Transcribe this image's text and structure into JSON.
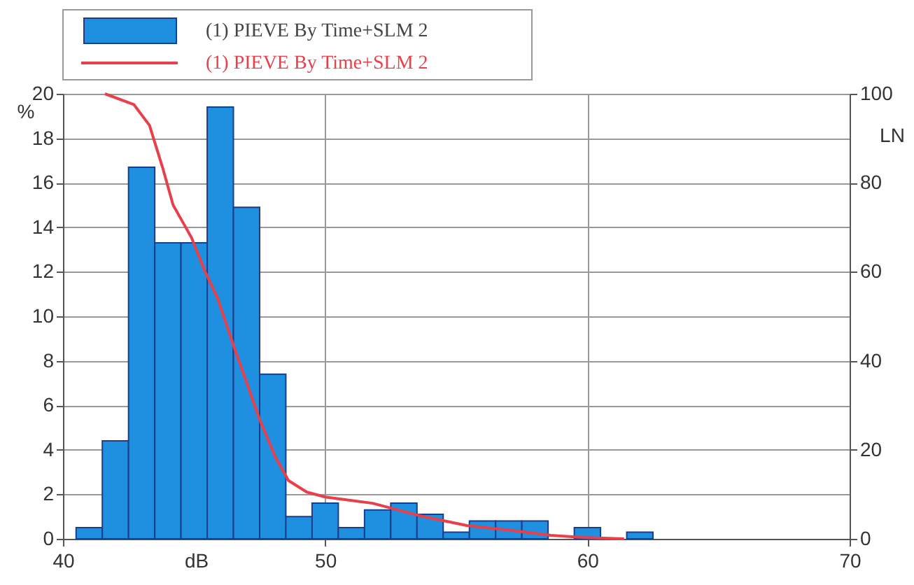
{
  "chart_data": {
    "type": "histogram",
    "xlabel": "dB",
    "ylabel": "%",
    "y2label": "LN",
    "bins": [
      40.5,
      41.5,
      42.5,
      43.5,
      44.5,
      45.5,
      46.5,
      47.5,
      48.5,
      49.5,
      50.5,
      51.5,
      52.5,
      53.5,
      54.5,
      55.5,
      56.5,
      57.5,
      58.5,
      59.5,
      60.5,
      61.5,
      62.5
    ],
    "series": [
      {
        "name": "(1) PIEVE By Time+SLM 2",
        "color": "#1f8fe0",
        "values": [
          0.5,
          4.4,
          16.7,
          13.3,
          13.3,
          19.4,
          14.9,
          7.4,
          1.0,
          1.6,
          0.5,
          1.3,
          1.6,
          1.1,
          0.3,
          0.8,
          0.8,
          0.8,
          null,
          0.5,
          null,
          0.3
        ]
      },
      {
        "name": "(1) PIEVE By Time+SLM 2",
        "type": "line",
        "axis": "y2",
        "color": "#e8404a",
        "x": [
          41.6,
          42.7,
          43.3,
          43.8,
          44.2,
          44.9,
          45.4,
          45.9,
          46.5,
          47.0,
          47.5,
          48.1,
          48.6,
          49.3,
          50.0,
          51.8,
          53.6,
          55.4,
          57.1,
          58.6,
          59.8,
          61.4
        ],
        "values": [
          100,
          97.6,
          92.9,
          83.4,
          75,
          67.7,
          60.3,
          54,
          43.5,
          35.2,
          26.8,
          18.4,
          13.1,
          10.5,
          9.4,
          8.0,
          5.2,
          3.0,
          1.9,
          0.8,
          0.3,
          0
        ]
      }
    ],
    "xlim": [
      40,
      70
    ],
    "xticks": [
      40,
      50,
      60,
      70
    ],
    "ylim": [
      0,
      20
    ],
    "yticks": [
      0,
      2,
      4,
      6,
      8,
      10,
      12,
      14,
      16,
      18,
      20
    ],
    "y2lim": [
      0,
      100
    ],
    "y2ticks": [
      0,
      20,
      40,
      60,
      80,
      100
    ],
    "grid": true,
    "legend": "top left"
  }
}
